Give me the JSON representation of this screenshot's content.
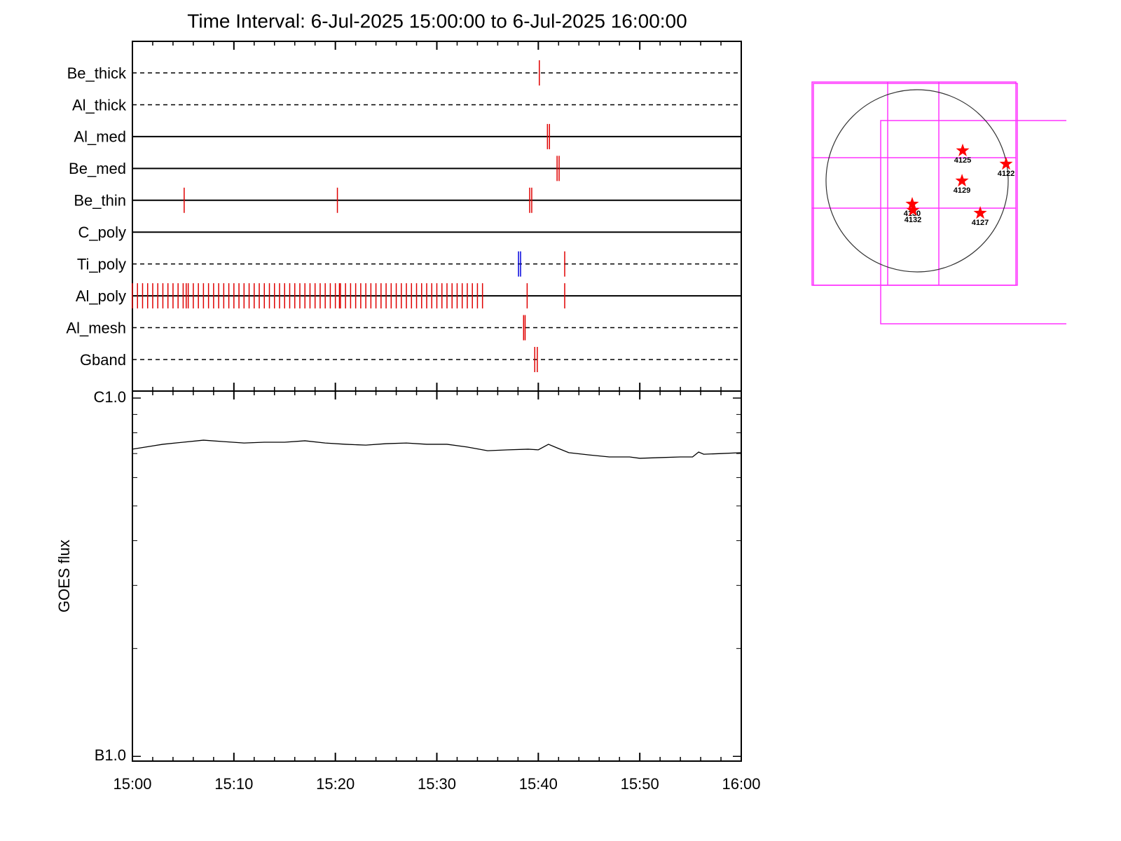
{
  "chart_data": [
    {
      "type": "timeline",
      "title": "Time Interval:  6-Jul-2025 15:00:00 to  6-Jul-2025 16:00:00",
      "event_color": "#e00000",
      "rows": [
        {
          "label": "Be_thick",
          "style": "dashed",
          "x": [
            40.1
          ]
        },
        {
          "label": "Al_thick",
          "style": "dashed",
          "x": []
        },
        {
          "label": "Al_med",
          "style": "solid",
          "x": [
            40.9,
            41.1
          ]
        },
        {
          "label": "Be_med",
          "style": "solid",
          "x": [
            41.85,
            42.05
          ]
        },
        {
          "label": "Be_thin",
          "style": "solid",
          "x": [
            5.1,
            20.2,
            39.15,
            39.35
          ]
        },
        {
          "label": "C_poly",
          "style": "solid",
          "x": []
        },
        {
          "label": "Ti_poly",
          "style": "dashed",
          "x": [
            38.05,
            38.25,
            42.6
          ],
          "colors": [
            "#0000dd",
            "#0000dd",
            "#e00000"
          ]
        },
        {
          "label": "Al_poly",
          "style": "solid",
          "x": [
            0,
            0.5,
            1,
            1.5,
            2,
            2.5,
            3,
            3.5,
            4,
            4.5,
            5,
            5.3,
            5.5,
            6,
            6.5,
            7,
            7.5,
            8,
            8.5,
            9,
            9.5,
            10,
            10.5,
            11,
            11.5,
            12,
            12.5,
            13,
            13.5,
            14,
            14.5,
            15,
            15.5,
            16,
            16.5,
            17,
            17.5,
            18,
            18.5,
            19,
            19.5,
            20,
            20.4,
            20.5,
            21,
            21.5,
            22,
            22.5,
            23,
            23.5,
            24,
            24.5,
            25,
            25.5,
            26,
            26.5,
            27,
            27.5,
            28,
            28.5,
            29,
            29.5,
            30,
            30.5,
            31,
            31.5,
            32,
            32.5,
            33,
            33.5,
            34,
            34.5,
            38.9,
            42.6
          ]
        },
        {
          "label": "Al_mesh",
          "style": "dashed",
          "x": [
            38.55,
            38.7
          ]
        },
        {
          "label": "Gband",
          "style": "dashed",
          "x": [
            39.65,
            39.9
          ]
        }
      ]
    },
    {
      "type": "line",
      "ylabel": "GOES flux",
      "log": true,
      "color": "#000000",
      "xlim": [
        0,
        60
      ],
      "xticks": [
        {
          "value": 0,
          "label": "15:00"
        },
        {
          "value": 10,
          "label": "15:10"
        },
        {
          "value": 20,
          "label": "15:20"
        },
        {
          "value": 30,
          "label": "15:30"
        },
        {
          "value": 40,
          "label": "15:40"
        },
        {
          "value": 50,
          "label": "15:50"
        },
        {
          "value": 60,
          "label": "16:00"
        }
      ],
      "xminorticks": [
        2,
        4,
        6,
        8,
        12,
        14,
        16,
        18,
        22,
        24,
        26,
        28,
        32,
        34,
        36,
        38,
        42,
        44,
        46,
        48,
        52,
        54,
        56,
        58
      ],
      "ylim": [
        9.7e-08,
        1.046e-06
      ],
      "yticks": [
        {
          "value": 1e-06,
          "label": "C1.0"
        },
        {
          "value": 1e-07,
          "label": "B1.0"
        }
      ],
      "yminorticks": [
        2e-07,
        3e-07,
        4e-07,
        5e-07,
        6e-07,
        7e-07,
        8e-07,
        9e-07
      ],
      "x": [
        0,
        3,
        5,
        7,
        9,
        11,
        13,
        15,
        17,
        19,
        21,
        23,
        25,
        27,
        29,
        31,
        33,
        35,
        37,
        39,
        40,
        41,
        42,
        43,
        45,
        47,
        49,
        50,
        52,
        54,
        55.2,
        55.8,
        56.3,
        58,
        60
      ],
      "values": [
        7.2e-07,
        7.43e-07,
        7.53e-07,
        7.63e-07,
        7.56e-07,
        7.49e-07,
        7.53e-07,
        7.53e-07,
        7.6e-07,
        7.49e-07,
        7.43e-07,
        7.39e-07,
        7.46e-07,
        7.49e-07,
        7.43e-07,
        7.43e-07,
        7.3e-07,
        7.13e-07,
        7.17e-07,
        7.2e-07,
        7.17e-07,
        7.43e-07,
        7.23e-07,
        7.04e-07,
        6.94e-07,
        6.85e-07,
        6.85e-07,
        6.79e-07,
        6.82e-07,
        6.85e-07,
        6.85e-07,
        7.07e-07,
        6.97e-07,
        7e-07,
        7.04e-07
      ]
    },
    {
      "type": "map",
      "color": "#ff0000",
      "xlim": [
        -960,
        960
      ],
      "ylim": [
        -960,
        960
      ],
      "regions": [
        {
          "label": "4125",
          "x": 480,
          "y": 318
        },
        {
          "label": "4122",
          "x": 938,
          "y": 177
        },
        {
          "label": "4129",
          "x": 473,
          "y": 0
        },
        {
          "label": "4130",
          "x": -52,
          "y": -244
        },
        {
          "label": "4132",
          "x": -44,
          "y": -310
        },
        {
          "label": "4127",
          "x": 665,
          "y": -340
        }
      ]
    }
  ]
}
